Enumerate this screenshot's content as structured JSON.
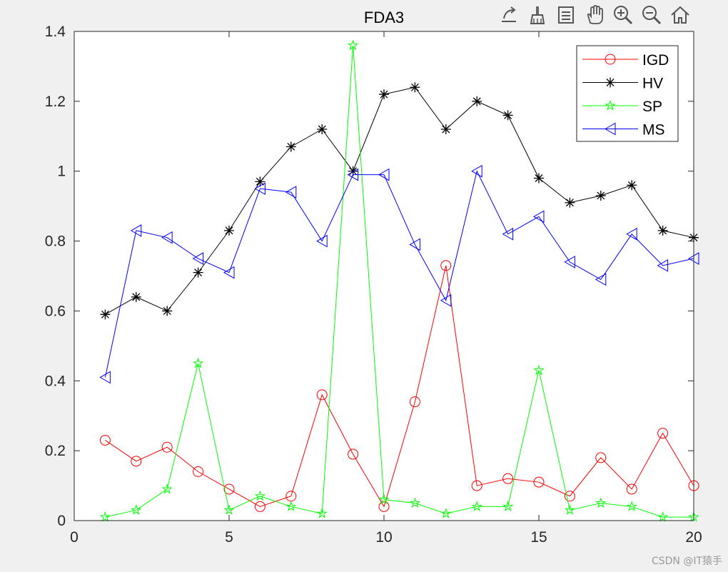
{
  "toolbar": {
    "buttons": [
      {
        "name": "export-button",
        "icon": "export-icon"
      },
      {
        "name": "brush-button",
        "icon": "brush-icon"
      },
      {
        "name": "datatip-button",
        "icon": "datatip-icon"
      },
      {
        "name": "pan-button",
        "icon": "pan-hand-icon"
      },
      {
        "name": "zoom-in-button",
        "icon": "zoom-in-icon"
      },
      {
        "name": "zoom-out-button",
        "icon": "zoom-out-icon"
      },
      {
        "name": "home-button",
        "icon": "home-icon"
      }
    ]
  },
  "watermark": "CSDN @IT猿手",
  "chart_data": {
    "type": "line",
    "title": "FDA3",
    "xlabel": "",
    "ylabel": "",
    "xlim": [
      0,
      20
    ],
    "ylim": [
      0,
      1.4
    ],
    "xticks": [
      0,
      5,
      10,
      15,
      20
    ],
    "yticks": [
      0,
      0.2,
      0.4,
      0.6,
      0.8,
      1,
      1.2,
      1.4
    ],
    "xtick_labels": [
      "0",
      "5",
      "10",
      "15",
      "20"
    ],
    "ytick_labels": [
      "0",
      "0.2",
      "0.4",
      "0.6",
      "0.8",
      "1",
      "1.2",
      "1.4"
    ],
    "grid": false,
    "legend_position": "top-right",
    "x": [
      1,
      2,
      3,
      4,
      5,
      6,
      7,
      8,
      9,
      10,
      11,
      12,
      13,
      14,
      15,
      16,
      17,
      18,
      19,
      20
    ],
    "series": [
      {
        "name": "IGD",
        "color": "#ff0000",
        "marker": "circle",
        "values": [
          0.23,
          0.17,
          0.21,
          0.14,
          0.09,
          0.04,
          0.07,
          0.36,
          0.19,
          0.04,
          0.34,
          0.73,
          0.1,
          0.12,
          0.11,
          0.07,
          0.18,
          0.09,
          0.25,
          0.1
        ]
      },
      {
        "name": "HV",
        "color": "#000000",
        "marker": "asterisk",
        "values": [
          0.59,
          0.64,
          0.6,
          0.71,
          0.83,
          0.97,
          1.07,
          1.12,
          1.0,
          1.22,
          1.24,
          1.12,
          1.2,
          1.16,
          0.98,
          0.91,
          0.93,
          0.96,
          0.83,
          0.81
        ]
      },
      {
        "name": "SP",
        "color": "#00ff00",
        "marker": "pentagram",
        "values": [
          0.01,
          0.03,
          0.09,
          0.45,
          0.03,
          0.07,
          0.04,
          0.02,
          1.36,
          0.06,
          0.05,
          0.02,
          0.04,
          0.04,
          0.43,
          0.03,
          0.05,
          0.04,
          0.01,
          0.01
        ]
      },
      {
        "name": "MS",
        "color": "#0000ff",
        "marker": "triangle-left",
        "values": [
          0.41,
          0.83,
          0.81,
          0.75,
          0.71,
          0.95,
          0.94,
          0.8,
          0.99,
          0.99,
          0.79,
          0.63,
          1.0,
          0.82,
          0.87,
          0.74,
          0.69,
          0.82,
          0.73,
          0.75
        ]
      }
    ]
  }
}
